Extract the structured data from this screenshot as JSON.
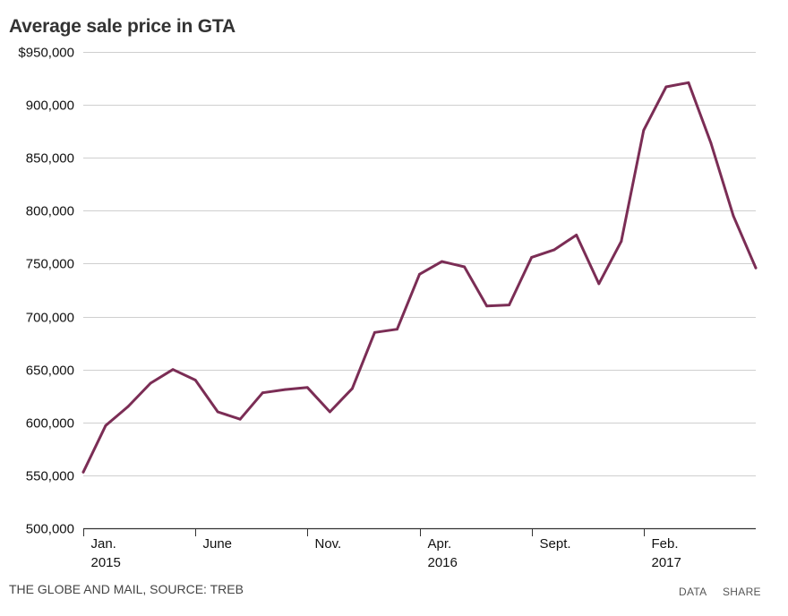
{
  "chart_data": {
    "type": "line",
    "title": "Average sale price in GTA",
    "xlabel": "",
    "ylabel": "",
    "ylim": [
      500000,
      950000
    ],
    "y_ticks": [
      500000,
      550000,
      600000,
      650000,
      700000,
      750000,
      800000,
      850000,
      900000,
      950000
    ],
    "y_tick_labels": [
      "500,000",
      "550,000",
      "600,000",
      "650,000",
      "700,000",
      "750,000",
      "800,000",
      "850,000",
      "900,000",
      "$950,000"
    ],
    "x_ticks": [
      {
        "index": 0,
        "line1": "Jan.",
        "line2": "2015"
      },
      {
        "index": 5,
        "line1": "June",
        "line2": ""
      },
      {
        "index": 10,
        "line1": "Nov.",
        "line2": ""
      },
      {
        "index": 15,
        "line1": "Apr.",
        "line2": "2016"
      },
      {
        "index": 20,
        "line1": "Sept.",
        "line2": ""
      },
      {
        "index": 25,
        "line1": "Feb.",
        "line2": "2017"
      }
    ],
    "series": [
      {
        "name": "Average sale price",
        "color": "#7b2d55",
        "x": [
          "Jan. 2015",
          "Feb. 2015",
          "Mar. 2015",
          "Apr. 2015",
          "May 2015",
          "June 2015",
          "July 2015",
          "Aug. 2015",
          "Sept. 2015",
          "Oct. 2015",
          "Nov. 2015",
          "Dec. 2015",
          "Jan. 2016",
          "Feb. 2016",
          "Mar. 2016",
          "Apr. 2016",
          "May 2016",
          "June 2016",
          "July 2016",
          "Aug. 2016",
          "Sept. 2016",
          "Oct. 2016",
          "Nov. 2016",
          "Dec. 2016",
          "Jan. 2017",
          "Feb. 2017",
          "Mar. 2017",
          "Apr. 2017",
          "May 2017",
          "June 2017",
          "July 2017"
        ],
        "values": [
          553000,
          597000,
          615000,
          637000,
          650000,
          640000,
          610000,
          603000,
          628000,
          631000,
          633000,
          610000,
          632000,
          685000,
          688000,
          740000,
          752000,
          747000,
          710000,
          711000,
          756000,
          763000,
          777000,
          731000,
          771000,
          876000,
          917000,
          921000,
          864000,
          795000,
          746000
        ]
      }
    ]
  },
  "footer": {
    "credit": "THE GLOBE AND MAIL, SOURCE: TREB",
    "data_label": "DATA",
    "share_label": "SHARE"
  }
}
